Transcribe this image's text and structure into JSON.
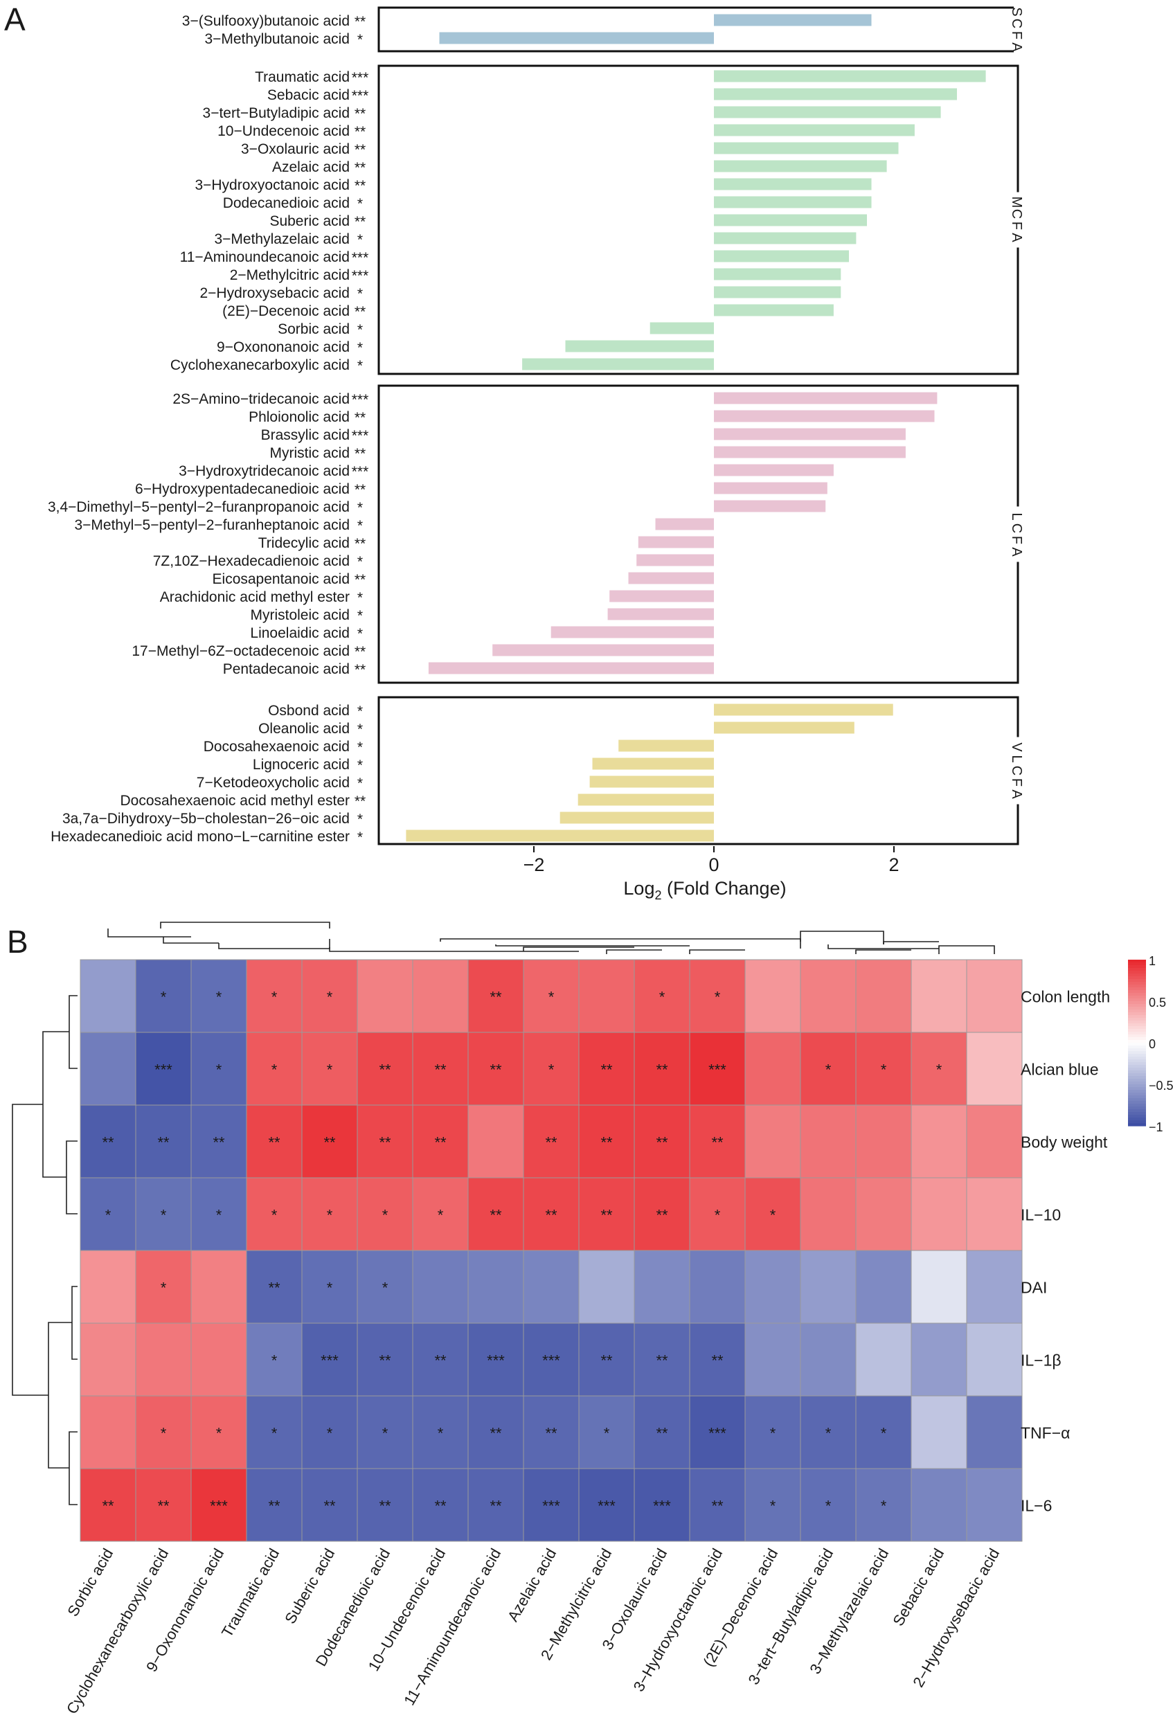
{
  "panel_a": {
    "label": "A",
    "xlabel_main": "Log",
    "xlabel_sub": "2",
    "xlabel_rest": " (Fold Change)"
  },
  "panel_b": {
    "label": "B"
  },
  "chart_data": [
    {
      "type": "bar",
      "orientation": "horizontal",
      "title": "",
      "xlabel": "Log2 (Fold Change)",
      "xlim": [
        -3.6,
        3.4
      ],
      "xticks": [
        -2,
        0,
        2
      ],
      "groups": [
        {
          "name": "SCFA",
          "color": "#a5c4d6",
          "items": [
            {
              "label": "3−(Sulfooxy)butanoic acid",
              "sig": "**",
              "value": 1.75
            },
            {
              "label": "3−Methylbutanoic acid",
              "sig": "*",
              "value": -3.05
            }
          ]
        },
        {
          "name": "MCFA",
          "color": "#bde4c6",
          "items": [
            {
              "label": "Traumatic acid",
              "sig": "***",
              "value": 3.02
            },
            {
              "label": "Sebacic acid",
              "sig": "***",
              "value": 2.7
            },
            {
              "label": "3−tert−Butyladipic acid",
              "sig": "**",
              "value": 2.52
            },
            {
              "label": "10−Undecenoic acid",
              "sig": "**",
              "value": 2.23
            },
            {
              "label": "3−Oxolauric acid",
              "sig": "**",
              "value": 2.05
            },
            {
              "label": "Azelaic acid",
              "sig": "**",
              "value": 1.92
            },
            {
              "label": "3−Hydroxyoctanoic acid",
              "sig": "**",
              "value": 1.75
            },
            {
              "label": "Dodecanedioic acid",
              "sig": "*",
              "value": 1.75
            },
            {
              "label": "Suberic acid",
              "sig": "**",
              "value": 1.7
            },
            {
              "label": "3−Methylazelaic acid",
              "sig": "*",
              "value": 1.58
            },
            {
              "label": "11−Aminoundecanoic acid",
              "sig": "***",
              "value": 1.5
            },
            {
              "label": "2−Methylcitric acid",
              "sig": "***",
              "value": 1.41
            },
            {
              "label": "2−Hydroxysebacic acid",
              "sig": "*",
              "value": 1.41
            },
            {
              "label": "(2E)−Decenoic acid",
              "sig": "**",
              "value": 1.33
            },
            {
              "label": "Sorbic acid",
              "sig": "*",
              "value": -0.71
            },
            {
              "label": "9−Oxononanoic acid",
              "sig": "*",
              "value": -1.65
            },
            {
              "label": "Cyclohexanecarboxylic acid",
              "sig": "*",
              "value": -2.13
            }
          ]
        },
        {
          "name": "LCFA",
          "color": "#e9c3d3",
          "items": [
            {
              "label": "2S−Amino−tridecanoic acid",
              "sig": "***",
              "value": 2.48
            },
            {
              "label": "Phloionolic acid",
              "sig": "**",
              "value": 2.45
            },
            {
              "label": "Brassylic acid",
              "sig": "***",
              "value": 2.13
            },
            {
              "label": "Myristic acid",
              "sig": "**",
              "value": 2.13
            },
            {
              "label": "3−Hydroxytridecanoic acid",
              "sig": "***",
              "value": 1.33
            },
            {
              "label": "6−Hydroxypentadecanedioic acid",
              "sig": "**",
              "value": 1.26
            },
            {
              "label": "3,4−Dimethyl−5−pentyl−2−furanpropanoic acid",
              "sig": "*",
              "value": 1.24
            },
            {
              "label": "3−Methyl−5−pentyl−2−furanheptanoic acid",
              "sig": "*",
              "value": -0.65
            },
            {
              "label": "Tridecylic acid",
              "sig": "**",
              "value": -0.84
            },
            {
              "label": "7Z,10Z−Hexadecadienoic acid",
              "sig": "*",
              "value": -0.86
            },
            {
              "label": "Eicosapentanoic acid",
              "sig": "**",
              "value": -0.95
            },
            {
              "label": "Arachidonic acid methyl ester",
              "sig": "*",
              "value": -1.16
            },
            {
              "label": "Myristoleic acid",
              "sig": "*",
              "value": -1.18
            },
            {
              "label": "Linoelaidic acid",
              "sig": "*",
              "value": -1.81
            },
            {
              "label": "17−Methyl−6Z−octadecenoic acid",
              "sig": "**",
              "value": -2.46
            },
            {
              "label": "Pentadecanoic acid",
              "sig": "**",
              "value": -3.17
            }
          ]
        },
        {
          "name": "VLCFA",
          "color": "#e9dc9a",
          "items": [
            {
              "label": "Osbond acid",
              "sig": "*",
              "value": 1.99
            },
            {
              "label": "Oleanolic acid",
              "sig": "*",
              "value": 1.56
            },
            {
              "label": "Docosahexaenoic acid",
              "sig": "*",
              "value": -1.06
            },
            {
              "label": "Lignoceric acid",
              "sig": "*",
              "value": -1.35
            },
            {
              "label": "7−Ketodeoxycholic acid",
              "sig": "*",
              "value": -1.38
            },
            {
              "label": "Docosahexaenoic acid methyl ester",
              "sig": "**",
              "value": -1.51
            },
            {
              "label": "3a,7a−Dihydroxy−5b−cholestan−26−oic acid",
              "sig": "*",
              "value": -1.71
            },
            {
              "label": "Hexadecanedioic acid mono−L−carnitine ester",
              "sig": "*",
              "value": -3.42
            }
          ]
        }
      ]
    },
    {
      "type": "heatmap",
      "title": "",
      "columns": [
        "Sorbic acid",
        "Cyclohexanecarboxylic acid",
        "9−Oxononanoic acid",
        "Traumatic acid",
        "Suberic acid",
        "Dodecanedioic acid",
        "10−Undecenoic acid",
        "11−Aminoundecanoic acid",
        "Azelaic acid",
        "2−Methylcitric acid",
        "3−Oxolauric acid",
        "3−Hydroxyoctanoic acid",
        "(2E)−Decenoic acid",
        "3−tert−Butyladipic acid",
        "3−Methylazelaic acid",
        "Sebacic acid",
        "2−Hydroxysebacic acid"
      ],
      "rows": [
        "Colon length",
        "Alcian blue",
        "Body weight",
        "IL−10",
        "DAI",
        "IL−1β",
        "TNF−α",
        "IL−6"
      ],
      "values": [
        [
          -0.55,
          -0.85,
          -0.8,
          0.72,
          0.72,
          0.58,
          0.6,
          0.82,
          0.7,
          0.7,
          0.76,
          0.75,
          0.48,
          0.58,
          0.6,
          0.38,
          0.42
        ],
        [
          -0.72,
          -0.95,
          -0.85,
          0.76,
          0.74,
          0.84,
          0.84,
          0.84,
          0.8,
          0.88,
          0.9,
          0.94,
          0.7,
          0.82,
          0.8,
          0.7,
          0.3
        ],
        [
          -0.9,
          -0.88,
          -0.85,
          0.85,
          0.92,
          0.84,
          0.84,
          0.62,
          0.84,
          0.88,
          0.88,
          0.84,
          0.6,
          0.64,
          0.64,
          0.5,
          0.58
        ],
        [
          -0.82,
          -0.78,
          -0.8,
          0.74,
          0.74,
          0.74,
          0.7,
          0.84,
          0.84,
          0.84,
          0.86,
          0.76,
          0.8,
          0.64,
          0.6,
          0.48,
          0.45
        ],
        [
          0.5,
          0.7,
          0.58,
          -0.85,
          -0.8,
          -0.76,
          -0.72,
          -0.7,
          -0.68,
          -0.45,
          -0.65,
          -0.72,
          -0.62,
          -0.55,
          -0.65,
          -0.15,
          -0.5
        ],
        [
          0.55,
          0.62,
          0.62,
          -0.72,
          -0.88,
          -0.86,
          -0.85,
          -0.88,
          -0.88,
          -0.86,
          -0.84,
          -0.86,
          -0.62,
          -0.64,
          -0.35,
          -0.55,
          -0.35
        ],
        [
          0.62,
          0.72,
          0.7,
          -0.84,
          -0.86,
          -0.84,
          -0.84,
          -0.86,
          -0.84,
          -0.78,
          -0.86,
          -0.92,
          -0.82,
          -0.84,
          -0.84,
          -0.32,
          -0.76
        ],
        [
          0.85,
          0.82,
          0.92,
          -0.86,
          -0.86,
          -0.86,
          -0.86,
          -0.86,
          -0.9,
          -0.92,
          -0.92,
          -0.86,
          -0.78,
          -0.8,
          -0.76,
          -0.68,
          -0.65
        ]
      ],
      "significance": [
        [
          "",
          "*",
          "*",
          "*",
          "*",
          "",
          "",
          "**",
          "*",
          "",
          "*",
          "*",
          "",
          "",
          "",
          "",
          ""
        ],
        [
          "",
          "***",
          "*",
          "*",
          "*",
          "**",
          "**",
          "**",
          "*",
          "**",
          "**",
          "***",
          "",
          "*",
          "*",
          "*",
          ""
        ],
        [
          "**",
          "**",
          "**",
          "**",
          "**",
          "**",
          "**",
          "",
          "**",
          "**",
          "**",
          "**",
          "",
          "",
          "",
          "",
          ""
        ],
        [
          "*",
          "*",
          "*",
          "*",
          "*",
          "*",
          "*",
          "**",
          "**",
          "**",
          "**",
          "*",
          "*",
          "",
          "",
          "",
          ""
        ],
        [
          "",
          "*",
          "",
          "**",
          "*",
          "*",
          "",
          "",
          "",
          "",
          "",
          "",
          "",
          "",
          "",
          "",
          ""
        ],
        [
          "",
          "",
          "",
          "*",
          "***",
          "**",
          "**",
          "***",
          "***",
          "**",
          "**",
          "**",
          "",
          "",
          "",
          "",
          ""
        ],
        [
          "",
          "*",
          "*",
          "*",
          "*",
          "*",
          "*",
          "**",
          "**",
          "*",
          "**",
          "***",
          "*",
          "*",
          "*",
          "",
          ""
        ],
        [
          "**",
          "**",
          "***",
          "**",
          "**",
          "**",
          "**",
          "**",
          "***",
          "***",
          "***",
          "**",
          "*",
          "*",
          "*",
          "",
          ""
        ]
      ],
      "colorscale": {
        "low": "#3a4ba2",
        "mid": "#ffffff",
        "high": "#e8242a",
        "range": [
          -1,
          1
        ]
      },
      "colorbar_ticks": [
        "1",
        "0.5",
        "0",
        "−0.5",
        "−1"
      ],
      "dendrogram": {
        "rows": true,
        "columns": true
      }
    }
  ]
}
